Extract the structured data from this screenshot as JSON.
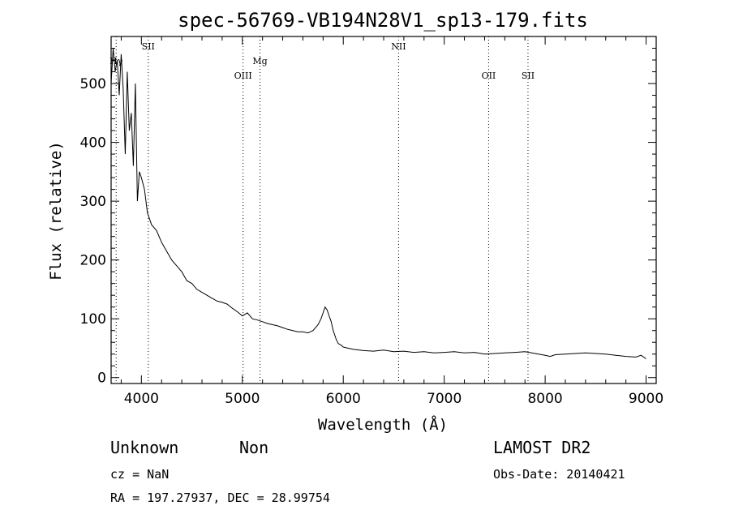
{
  "chart_data": {
    "type": "line",
    "title": "spec-56769-VB194N28V1_sp13-179.fits",
    "xlabel": "Wavelength (Å)",
    "ylabel": "Flux (relative)",
    "xlim": [
      3700,
      9100
    ],
    "ylim": [
      -10,
      580
    ],
    "x_ticks": [
      4000,
      5000,
      6000,
      7000,
      8000,
      9000
    ],
    "y_ticks": [
      0,
      100,
      200,
      300,
      400,
      500
    ],
    "grid": false,
    "series": [
      {
        "x": [
          3700,
          3720,
          3740,
          3760,
          3780,
          3800,
          3820,
          3840,
          3860,
          3880,
          3900,
          3920,
          3940,
          3960,
          3980,
          4000,
          4030,
          4060,
          4100,
          4150,
          4200,
          4250,
          4300,
          4350,
          4400,
          4450,
          4500,
          4550,
          4600,
          4650,
          4700,
          4750,
          4800,
          4850,
          4900,
          4950,
          5000,
          5050,
          5100,
          5150,
          5200,
          5250,
          5300,
          5350,
          5400,
          5450,
          5500,
          5550,
          5600,
          5650,
          5700,
          5750,
          5780,
          5800,
          5820,
          5840,
          5860,
          5880,
          5900,
          5930,
          5950,
          5980,
          6000,
          6050,
          6100,
          6200,
          6300,
          6400,
          6500,
          6600,
          6700,
          6800,
          6900,
          7000,
          7100,
          7200,
          7300,
          7400,
          7500,
          7600,
          7700,
          7800,
          7900,
          8000,
          8050,
          8100,
          8200,
          8300,
          8400,
          8500,
          8600,
          8700,
          8800,
          8900,
          8950,
          9000
        ],
        "y": [
          500,
          560,
          520,
          540,
          480,
          550,
          490,
          380,
          520,
          420,
          450,
          360,
          500,
          300,
          350,
          340,
          320,
          280,
          260,
          250,
          230,
          215,
          200,
          190,
          180,
          165,
          160,
          150,
          145,
          140,
          135,
          130,
          128,
          125,
          118,
          112,
          105,
          110,
          100,
          98,
          95,
          92,
          90,
          88,
          85,
          82,
          80,
          78,
          78,
          76,
          80,
          90,
          100,
          110,
          120,
          115,
          105,
          95,
          80,
          65,
          58,
          55,
          52,
          50,
          48,
          46,
          45,
          47,
          44,
          45,
          43,
          44,
          42,
          43,
          44,
          42,
          43,
          40,
          41,
          42,
          43,
          44,
          41,
          38,
          36,
          39,
          40,
          41,
          42,
          41,
          40,
          38,
          36,
          35,
          38,
          32
        ]
      }
    ],
    "markers": [
      {
        "label": "Hγ",
        "x": 3750,
        "row": 1
      },
      {
        "label": "SII",
        "x": 4068,
        "row": 0
      },
      {
        "label": "OIII",
        "x": 5007,
        "row": 2
      },
      {
        "label": "Mg",
        "x": 5175,
        "row": 1
      },
      {
        "label": "NII",
        "x": 6548,
        "row": 0
      },
      {
        "label": "OII",
        "x": 7440,
        "row": 2
      },
      {
        "label": "SII",
        "x": 7830,
        "row": 2
      }
    ]
  },
  "info": {
    "class": "Unknown",
    "subclass": "Non",
    "survey": "LAMOST DR2",
    "cz": "cz = NaN",
    "obs_date": "Obs-Date: 20140421",
    "radec": "RA = 197.27937, DEC =  28.99754"
  }
}
